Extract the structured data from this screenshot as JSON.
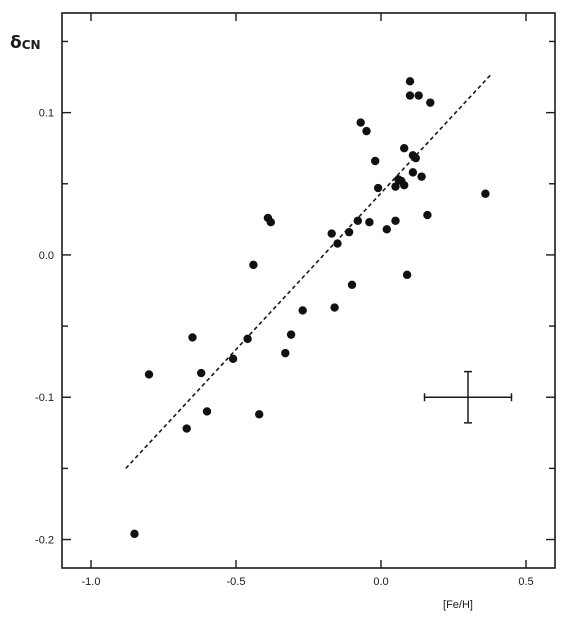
{
  "chart_data": {
    "type": "scatter",
    "title": "",
    "xlabel": "[Fe/H]",
    "ylabel": "δ",
    "ylabel_sub": "CN",
    "xlim": [
      -1.1,
      0.6
    ],
    "ylim": [
      -0.22,
      0.17
    ],
    "x_ticks": [
      -1.0,
      -0.5,
      0.0,
      0.5
    ],
    "x_tick_labels": [
      "-1.0",
      "-0.5",
      "0.0",
      "0.5"
    ],
    "y_ticks": [
      -0.2,
      -0.1,
      0.0,
      0.1
    ],
    "y_tick_labels": [
      "-0.2",
      "-0.1",
      "0.0",
      "0.1"
    ],
    "grid": false,
    "points": {
      "x": [
        -0.85,
        -0.8,
        -0.67,
        -0.65,
        -0.62,
        -0.6,
        -0.51,
        -0.46,
        -0.44,
        -0.42,
        -0.39,
        -0.38,
        -0.33,
        -0.31,
        -0.27,
        -0.17,
        -0.16,
        -0.15,
        -0.11,
        -0.1,
        -0.08,
        -0.07,
        -0.05,
        -0.04,
        -0.02,
        -0.01,
        0.02,
        0.05,
        0.05,
        0.06,
        0.07,
        0.08,
        0.08,
        0.09,
        0.1,
        0.1,
        0.11,
        0.11,
        0.12,
        0.13,
        0.14,
        0.16,
        0.17,
        0.36
      ],
      "y": [
        -0.196,
        -0.084,
        -0.122,
        -0.058,
        -0.083,
        -0.11,
        -0.073,
        -0.059,
        -0.007,
        -0.112,
        0.026,
        0.023,
        -0.069,
        -0.056,
        -0.039,
        0.015,
        -0.037,
        0.008,
        0.016,
        -0.021,
        0.024,
        0.093,
        0.087,
        0.023,
        0.066,
        0.047,
        0.018,
        0.024,
        0.048,
        0.053,
        0.052,
        0.075,
        0.049,
        -0.014,
        0.112,
        0.122,
        0.058,
        0.07,
        0.068,
        0.112,
        0.055,
        0.028,
        0.107,
        0.043
      ]
    },
    "fit_line": {
      "x": [
        -0.88,
        0.38
      ],
      "y": [
        -0.15,
        0.127
      ],
      "style": "dashed"
    },
    "error_bar": {
      "x": 0.3,
      "y": -0.1,
      "x_err": 0.15,
      "y_err": 0.018
    }
  }
}
